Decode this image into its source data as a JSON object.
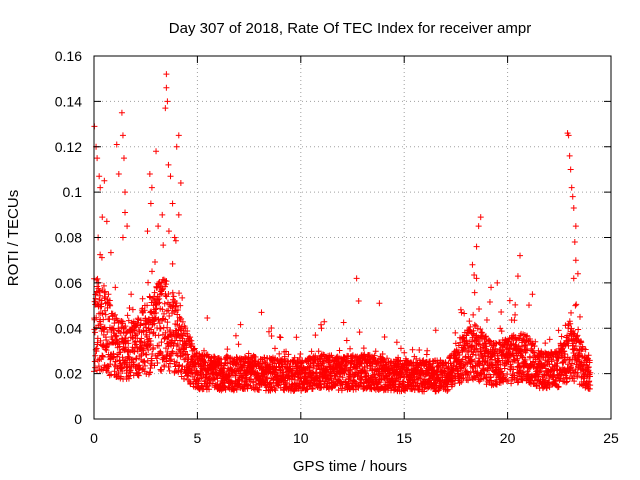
{
  "chart_data": {
    "type": "scatter",
    "title": "Day 307 of 2018, Rate Of TEC Index for receiver ampr",
    "xlabel": "GPS time / hours",
    "ylabel": "ROTI / TECUs",
    "xlim": [
      0,
      25
    ],
    "ylim": [
      0,
      0.16
    ],
    "xticks": [
      "0",
      "5",
      "10",
      "15",
      "20",
      "25"
    ],
    "yticks": [
      "0",
      "0.02",
      "0.04",
      "0.06",
      "0.08",
      "0.1",
      "0.12",
      "0.14",
      "0.16"
    ],
    "grid": true,
    "marker": "plus",
    "point_color": "#ff0000",
    "series": [
      {
        "profile": [
          {
            "x": 0.0,
            "y": 0.042
          },
          {
            "x": 0.5,
            "y": 0.04
          },
          {
            "x": 1.0,
            "y": 0.032
          },
          {
            "x": 1.5,
            "y": 0.03
          },
          {
            "x": 2.0,
            "y": 0.031
          },
          {
            "x": 2.5,
            "y": 0.035
          },
          {
            "x": 3.0,
            "y": 0.04
          },
          {
            "x": 3.5,
            "y": 0.042
          },
          {
            "x": 4.0,
            "y": 0.036
          },
          {
            "x": 4.5,
            "y": 0.028
          },
          {
            "x": 5.0,
            "y": 0.021
          },
          {
            "x": 6.0,
            "y": 0.02
          },
          {
            "x": 8.0,
            "y": 0.02
          },
          {
            "x": 10.0,
            "y": 0.019
          },
          {
            "x": 11.0,
            "y": 0.021
          },
          {
            "x": 12.0,
            "y": 0.02
          },
          {
            "x": 13.0,
            "y": 0.021
          },
          {
            "x": 14.0,
            "y": 0.02
          },
          {
            "x": 15.0,
            "y": 0.019
          },
          {
            "x": 16.0,
            "y": 0.019
          },
          {
            "x": 17.0,
            "y": 0.019
          },
          {
            "x": 17.5,
            "y": 0.022
          },
          {
            "x": 18.0,
            "y": 0.028
          },
          {
            "x": 18.5,
            "y": 0.03
          },
          {
            "x": 19.0,
            "y": 0.025
          },
          {
            "x": 19.5,
            "y": 0.024
          },
          {
            "x": 20.0,
            "y": 0.026
          },
          {
            "x": 20.5,
            "y": 0.027
          },
          {
            "x": 21.0,
            "y": 0.026
          },
          {
            "x": 21.5,
            "y": 0.022
          },
          {
            "x": 22.0,
            "y": 0.021
          },
          {
            "x": 22.5,
            "y": 0.023
          },
          {
            "x": 23.0,
            "y": 0.03
          },
          {
            "x": 23.5,
            "y": 0.025
          },
          {
            "x": 24.0,
            "y": 0.02
          }
        ],
        "peaks": [
          {
            "x": 0.02,
            "y": 0.129
          },
          {
            "x": 0.1,
            "y": 0.12
          },
          {
            "x": 0.15,
            "y": 0.115
          },
          {
            "x": 0.25,
            "y": 0.107
          },
          {
            "x": 0.3,
            "y": 0.102
          },
          {
            "x": 0.4,
            "y": 0.089
          },
          {
            "x": 0.5,
            "y": 0.105
          },
          {
            "x": 0.2,
            "y": 0.08
          },
          {
            "x": 1.1,
            "y": 0.121
          },
          {
            "x": 1.2,
            "y": 0.108
          },
          {
            "x": 1.35,
            "y": 0.135
          },
          {
            "x": 1.4,
            "y": 0.125
          },
          {
            "x": 1.45,
            "y": 0.115
          },
          {
            "x": 1.5,
            "y": 0.1
          },
          {
            "x": 1.5,
            "y": 0.091
          },
          {
            "x": 1.4,
            "y": 0.08
          },
          {
            "x": 1.6,
            "y": 0.085
          },
          {
            "x": 2.7,
            "y": 0.108
          },
          {
            "x": 2.8,
            "y": 0.102
          },
          {
            "x": 2.75,
            "y": 0.095
          },
          {
            "x": 3.0,
            "y": 0.118
          },
          {
            "x": 3.1,
            "y": 0.085
          },
          {
            "x": 3.3,
            "y": 0.09
          },
          {
            "x": 3.5,
            "y": 0.152
          },
          {
            "x": 3.5,
            "y": 0.146
          },
          {
            "x": 3.55,
            "y": 0.14
          },
          {
            "x": 3.45,
            "y": 0.137
          },
          {
            "x": 3.6,
            "y": 0.112
          },
          {
            "x": 3.7,
            "y": 0.107
          },
          {
            "x": 3.8,
            "y": 0.095
          },
          {
            "x": 4.0,
            "y": 0.12
          },
          {
            "x": 4.1,
            "y": 0.125
          },
          {
            "x": 4.2,
            "y": 0.104
          },
          {
            "x": 4.1,
            "y": 0.09
          },
          {
            "x": 3.9,
            "y": 0.08
          },
          {
            "x": 8.1,
            "y": 0.047
          },
          {
            "x": 11.0,
            "y": 0.04
          },
          {
            "x": 12.7,
            "y": 0.062
          },
          {
            "x": 12.8,
            "y": 0.052
          },
          {
            "x": 13.8,
            "y": 0.051
          },
          {
            "x": 18.3,
            "y": 0.068
          },
          {
            "x": 18.5,
            "y": 0.076
          },
          {
            "x": 18.6,
            "y": 0.085
          },
          {
            "x": 18.7,
            "y": 0.089
          },
          {
            "x": 18.5,
            "y": 0.062
          },
          {
            "x": 19.2,
            "y": 0.058
          },
          {
            "x": 19.5,
            "y": 0.06
          },
          {
            "x": 20.6,
            "y": 0.072
          },
          {
            "x": 20.5,
            "y": 0.063
          },
          {
            "x": 21.2,
            "y": 0.055
          },
          {
            "x": 22.9,
            "y": 0.126
          },
          {
            "x": 22.95,
            "y": 0.125
          },
          {
            "x": 23.0,
            "y": 0.116
          },
          {
            "x": 23.05,
            "y": 0.11
          },
          {
            "x": 23.1,
            "y": 0.102
          },
          {
            "x": 23.15,
            "y": 0.098
          },
          {
            "x": 23.2,
            "y": 0.093
          },
          {
            "x": 23.3,
            "y": 0.085
          },
          {
            "x": 23.25,
            "y": 0.078
          },
          {
            "x": 23.3,
            "y": 0.07
          },
          {
            "x": 23.2,
            "y": 0.062
          },
          {
            "x": 23.4,
            "y": 0.064
          },
          {
            "x": 23.5,
            "y": 0.045
          }
        ]
      }
    ]
  }
}
